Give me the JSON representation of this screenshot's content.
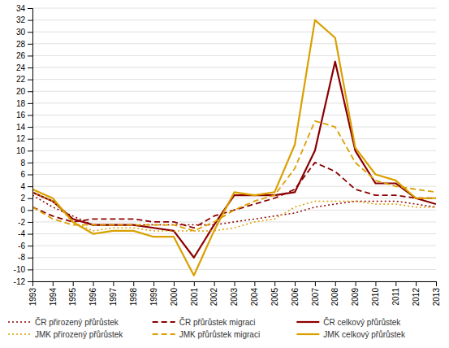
{
  "chart_data": {
    "type": "line",
    "x": [
      1993,
      1994,
      1995,
      1996,
      1997,
      1998,
      1999,
      2000,
      2001,
      2002,
      2003,
      2004,
      2005,
      2006,
      2007,
      2008,
      2009,
      2010,
      2011,
      2012,
      2013
    ],
    "xlim": [
      1993,
      2013
    ],
    "xticks": [
      1993,
      1994,
      1995,
      1996,
      1997,
      1998,
      1999,
      2000,
      2001,
      2002,
      2003,
      2004,
      2005,
      2006,
      2007,
      2008,
      2009,
      2010,
      2011,
      2012,
      2013
    ],
    "ylim": [
      -12,
      34
    ],
    "yticks": [
      -12,
      -10,
      -8,
      -6,
      -4,
      -2,
      0,
      2,
      4,
      6,
      8,
      10,
      12,
      14,
      16,
      18,
      20,
      22,
      24,
      26,
      28,
      30,
      32,
      34
    ],
    "grid": "y",
    "legend": "bottom",
    "series": [
      {
        "name": "ČR přirozený přůrůstek",
        "color": "#8B0000",
        "line_style": "dotted",
        "values": [
          2.5,
          0.5,
          -1.0,
          -2.5,
          -2.5,
          -2.5,
          -2.5,
          -2.5,
          -2.5,
          -2.5,
          -2.0,
          -1.5,
          -1.0,
          -0.5,
          0.5,
          1.0,
          1.5,
          1.5,
          1.5,
          1.0,
          0.5
        ]
      },
      {
        "name": "ČR přůrůstek migraci",
        "color": "#8B0000",
        "line_style": "dashed",
        "values": [
          0.5,
          -1.0,
          -2.0,
          -1.5,
          -1.5,
          -1.5,
          -2.0,
          -2.0,
          -3.0,
          -1.0,
          0.0,
          1.0,
          2.0,
          3.5,
          8.0,
          6.5,
          3.5,
          2.5,
          2.5,
          2.0,
          2.0
        ]
      },
      {
        "name": "ČR celkový přůrůstek",
        "color": "#8B0000",
        "line_style": "solid",
        "values": [
          3.0,
          1.5,
          -1.5,
          -2.5,
          -2.5,
          -2.5,
          -3.0,
          -3.5,
          -8.0,
          -2.5,
          2.5,
          2.5,
          2.5,
          3.0,
          10.0,
          25.0,
          10.0,
          4.5,
          4.5,
          2.0,
          1.0
        ]
      },
      {
        "name": "JMK přirozený přůrůstek",
        "color": "#DAA000",
        "line_style": "dotted",
        "values": [
          3.0,
          1.5,
          -2.0,
          -3.5,
          -3.0,
          -3.0,
          -3.5,
          -3.5,
          -3.5,
          -3.5,
          -3.0,
          -2.0,
          -1.5,
          0.5,
          1.5,
          1.5,
          1.5,
          1.0,
          1.0,
          0.5,
          0.5
        ]
      },
      {
        "name": "JMK přůrůstek migraci",
        "color": "#DAA000",
        "line_style": "dashed",
        "values": [
          0.5,
          -1.5,
          -2.5,
          -2.5,
          -2.5,
          -2.5,
          -2.5,
          -2.5,
          -3.5,
          -2.0,
          0.0,
          1.5,
          2.5,
          7.0,
          15.0,
          14.0,
          8.0,
          5.0,
          4.0,
          3.5,
          3.0
        ]
      },
      {
        "name": "JMK celkový přůrůstek",
        "color": "#DAA000",
        "line_style": "solid",
        "values": [
          3.5,
          2.0,
          -2.0,
          -4.0,
          -3.5,
          -3.5,
          -4.5,
          -4.5,
          -11.0,
          -3.5,
          3.0,
          2.5,
          3.0,
          11.0,
          32.0,
          29.0,
          10.5,
          6.0,
          5.0,
          2.0,
          2.0
        ]
      }
    ]
  }
}
